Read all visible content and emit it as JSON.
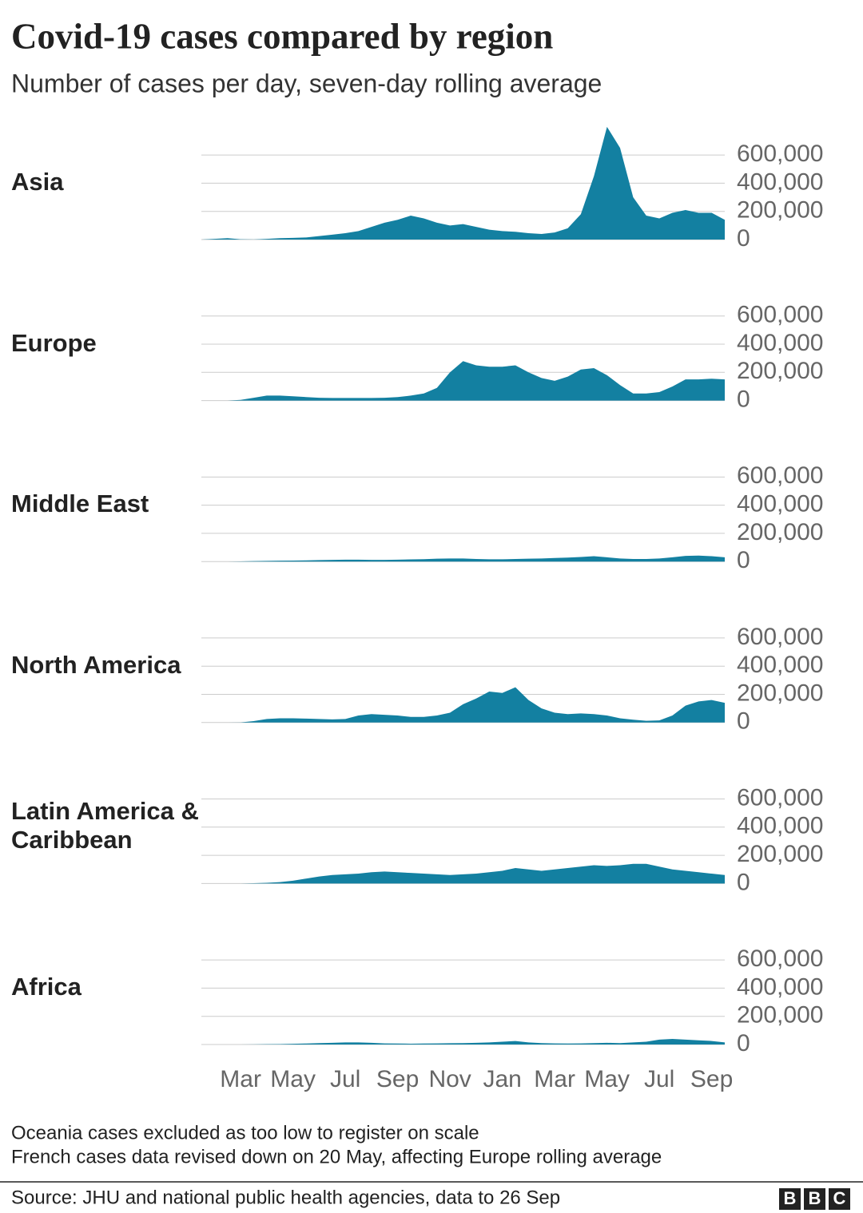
{
  "chart_data": {
    "type": "area",
    "title": "Covid-19 cases compared by region",
    "subtitle": "Number of cases per day, seven-day rolling average",
    "categories": [
      null,
      null,
      null,
      "Mar",
      null,
      null,
      null,
      "May",
      null,
      null,
      null,
      "Jul",
      null,
      null,
      null,
      "Sep",
      null,
      null,
      null,
      "Nov",
      null,
      null,
      null,
      "Jan",
      null,
      null,
      null,
      "Mar",
      null,
      null,
      null,
      "May",
      null,
      null,
      null,
      "Jul",
      null,
      null,
      null,
      "Sep",
      null
    ],
    "ylim": [
      0,
      850000
    ],
    "yticks": [
      {
        "value": 0,
        "label": "0"
      },
      {
        "value": 200000,
        "label": "200,000"
      },
      {
        "value": 400000,
        "label": "400,000"
      },
      {
        "value": 600000,
        "label": "600,000"
      }
    ],
    "grid": true,
    "series": [
      {
        "name": "Asia",
        "color": "#1380a1",
        "values": [
          0,
          5000,
          10000,
          2000,
          1000,
          5000,
          10000,
          12000,
          15000,
          25000,
          35000,
          45000,
          60000,
          90000,
          120000,
          140000,
          170000,
          150000,
          120000,
          100000,
          110000,
          90000,
          70000,
          60000,
          55000,
          45000,
          40000,
          50000,
          80000,
          180000,
          450000,
          800000,
          650000,
          300000,
          170000,
          150000,
          190000,
          210000,
          190000,
          190000,
          140000
        ]
      },
      {
        "name": "Europe",
        "color": "#1380a1",
        "values": [
          0,
          0,
          0,
          5000,
          20000,
          35000,
          35000,
          30000,
          25000,
          20000,
          18000,
          18000,
          18000,
          18000,
          20000,
          25000,
          35000,
          50000,
          90000,
          200000,
          280000,
          250000,
          240000,
          240000,
          250000,
          200000,
          160000,
          140000,
          170000,
          220000,
          230000,
          180000,
          110000,
          50000,
          50000,
          60000,
          100000,
          150000,
          150000,
          155000,
          150000
        ]
      },
      {
        "name": "Middle East",
        "color": "#1380a1",
        "values": [
          0,
          0,
          0,
          1000,
          3000,
          5000,
          6000,
          7000,
          8000,
          10000,
          12000,
          13000,
          13000,
          12000,
          12000,
          13000,
          15000,
          17000,
          20000,
          22000,
          22000,
          18000,
          16000,
          16000,
          18000,
          20000,
          22000,
          25000,
          28000,
          32000,
          38000,
          30000,
          22000,
          18000,
          18000,
          22000,
          30000,
          40000,
          42000,
          38000,
          30000
        ]
      },
      {
        "name": "North America",
        "color": "#1380a1",
        "values": [
          0,
          0,
          0,
          1000,
          10000,
          25000,
          30000,
          30000,
          28000,
          25000,
          22000,
          25000,
          50000,
          60000,
          55000,
          50000,
          40000,
          40000,
          50000,
          70000,
          130000,
          170000,
          220000,
          210000,
          250000,
          160000,
          100000,
          70000,
          60000,
          65000,
          60000,
          50000,
          30000,
          20000,
          12000,
          15000,
          50000,
          120000,
          150000,
          160000,
          140000
        ]
      },
      {
        "name": "Latin America & Caribbean",
        "color": "#1380a1",
        "values": [
          0,
          0,
          0,
          0,
          2000,
          5000,
          10000,
          20000,
          35000,
          50000,
          60000,
          65000,
          70000,
          80000,
          85000,
          80000,
          75000,
          70000,
          65000,
          60000,
          65000,
          70000,
          80000,
          90000,
          110000,
          100000,
          90000,
          100000,
          110000,
          120000,
          130000,
          125000,
          130000,
          140000,
          140000,
          120000,
          100000,
          90000,
          80000,
          70000,
          60000
        ]
      },
      {
        "name": "Africa",
        "color": "#1380a1",
        "values": [
          0,
          0,
          0,
          0,
          1000,
          2000,
          3000,
          5000,
          7000,
          10000,
          12000,
          15000,
          15000,
          12000,
          8000,
          7000,
          6000,
          7000,
          8000,
          9000,
          10000,
          12000,
          15000,
          20000,
          25000,
          15000,
          10000,
          8000,
          7000,
          8000,
          10000,
          12000,
          10000,
          15000,
          20000,
          35000,
          40000,
          35000,
          30000,
          25000,
          15000
        ]
      }
    ],
    "notes": [
      "Oceania cases excluded as too low to register on scale",
      "French cases data revised down on 20 May, affecting Europe rolling average"
    ],
    "source": "Source: JHU and national public health agencies, data to 26 Sep",
    "logo": [
      "B",
      "B",
      "C"
    ]
  }
}
